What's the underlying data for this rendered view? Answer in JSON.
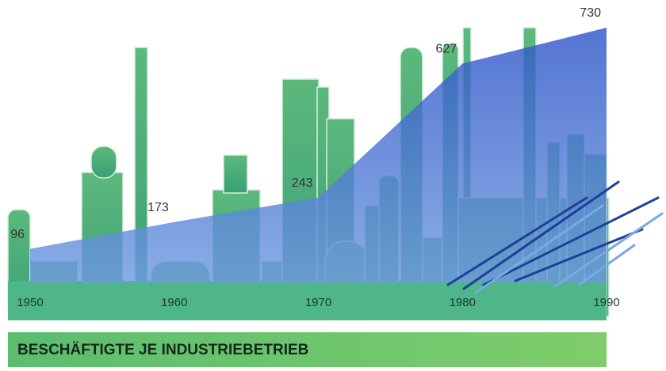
{
  "chart_data": {
    "type": "area",
    "title": "BESCHÄFTIGTE JE INDUSTRIEBETRIEB",
    "x": [
      1950,
      1960,
      1970,
      1980,
      1990
    ],
    "values": [
      96,
      173,
      243,
      627,
      730
    ],
    "color": "#3d66cc",
    "xlim": [
      1950,
      1990
    ],
    "xticks": [
      1950,
      1960,
      1970,
      1980,
      1990
    ],
    "ylim": [
      0,
      730
    ]
  }
}
